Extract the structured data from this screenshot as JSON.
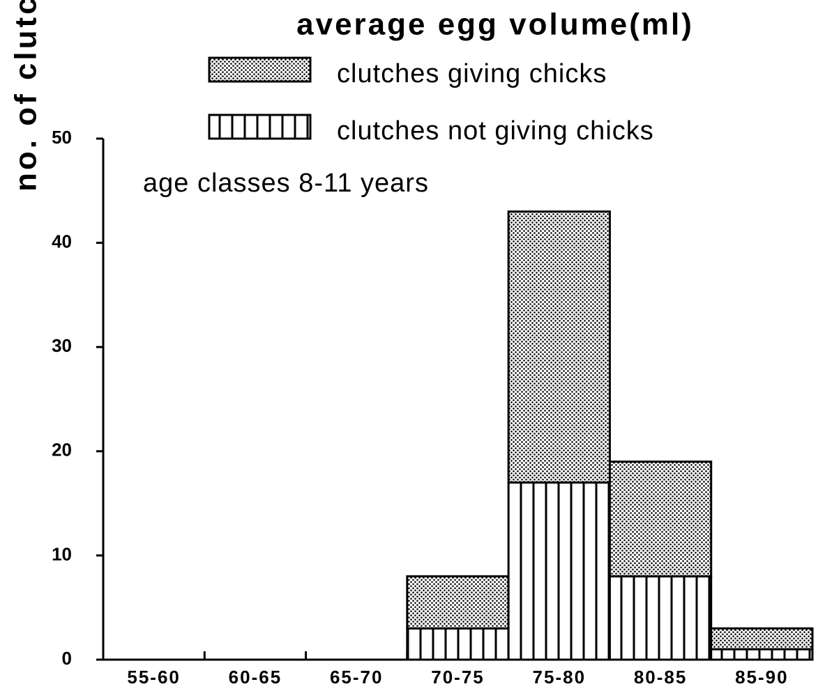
{
  "chart_data": {
    "type": "bar",
    "stacked": true,
    "title": "average egg volume(ml)",
    "ylabel": "no. of clutches",
    "annotation": "age classes 8-11 years",
    "categories": [
      "55-60",
      "60-65",
      "65-70",
      "70-75",
      "75-80",
      "80-85",
      "85-90"
    ],
    "series": [
      {
        "name": "clutches not giving chicks",
        "color": "#000000",
        "values": [
          0,
          0,
          0,
          3,
          17,
          8,
          1
        ]
      },
      {
        "name": "clutches giving chicks",
        "color": "#000000",
        "values": [
          0,
          0,
          0,
          5,
          26,
          11,
          2
        ]
      }
    ],
    "ylim": [
      0,
      50
    ],
    "yticks": [
      0,
      10,
      20,
      30,
      40,
      50
    ]
  }
}
